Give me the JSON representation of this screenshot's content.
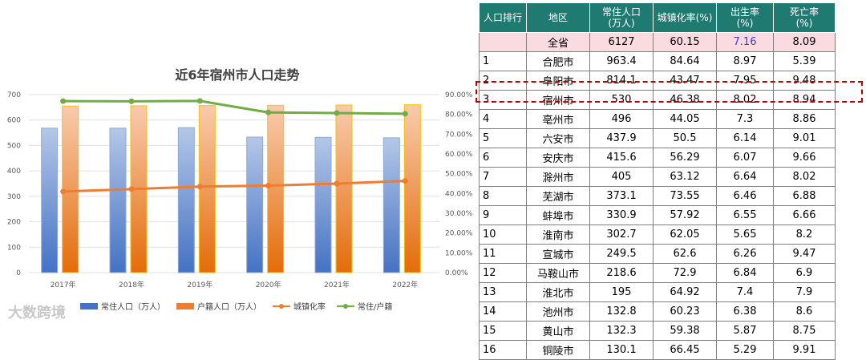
{
  "chart_data": {
    "type": "bar",
    "title": "近6年宿州市人口走势",
    "categories": [
      "2017年",
      "2018年",
      "2019年",
      "2020年",
      "2021年",
      "2022年"
    ],
    "series": [
      {
        "name": "常住人口（万人）",
        "kind": "bar",
        "axis": "left",
        "color": "#4472c4",
        "values": [
          568,
          568,
          570,
          533,
          532,
          530
        ]
      },
      {
        "name": "户籍人口（万人）",
        "kind": "bar",
        "axis": "left",
        "color": "#ed7d31",
        "values": [
          655,
          656,
          657,
          658,
          659,
          660
        ]
      },
      {
        "name": "城镇化率",
        "kind": "line",
        "axis": "right",
        "color": "#ed7d31",
        "values": [
          41.0,
          42.2,
          43.5,
          44.0,
          45.0,
          46.38
        ]
      },
      {
        "name": "常住/户籍",
        "kind": "line",
        "axis": "right",
        "color": "#70ad47",
        "values": [
          86.7,
          86.6,
          86.8,
          81.0,
          80.7,
          80.3
        ]
      }
    ],
    "ylim_left": [
      0,
      700
    ],
    "yticks_left": [
      "0",
      "100",
      "200",
      "300",
      "400",
      "500",
      "600",
      "700"
    ],
    "ylim_right": [
      0,
      90
    ],
    "yticks_right": [
      "0.00%",
      "10.00%",
      "20.00%",
      "30.00%",
      "40.00%",
      "50.00%",
      "60.00%",
      "70.00%",
      "80.00%",
      "90.00%"
    ],
    "grid": true,
    "legend_position": "bottom"
  },
  "watermark": "大数跨境",
  "table": {
    "headers": [
      "人口排行",
      "地区",
      "常住人口\n(万人)",
      "城镇化率(%)",
      "出生率\n(%)",
      "死亡率\n(%)"
    ],
    "rows": [
      [
        "",
        "全省",
        "6127",
        "60.15",
        "7.16",
        "8.09"
      ],
      [
        "1",
        "合肥市",
        "963.4",
        "84.64",
        "8.97",
        "5.39"
      ],
      [
        "2",
        "阜阳市",
        "814.1",
        "43.47",
        "7.95",
        "9.48"
      ],
      [
        "3",
        "宿州市",
        "530",
        "46.38",
        "8.02",
        "8.94"
      ],
      [
        "4",
        "亳州市",
        "496",
        "44.05",
        "7.3",
        "8.86"
      ],
      [
        "5",
        "六安市",
        "437.9",
        "50.5",
        "6.14",
        "9.01"
      ],
      [
        "6",
        "安庆市",
        "415.6",
        "56.29",
        "6.07",
        "9.66"
      ],
      [
        "7",
        "滁州市",
        "405",
        "63.12",
        "6.64",
        "8.02"
      ],
      [
        "8",
        "芜湖市",
        "373.1",
        "73.55",
        "6.46",
        "6.88"
      ],
      [
        "9",
        "蚌埠市",
        "330.9",
        "57.92",
        "6.55",
        "6.66"
      ],
      [
        "10",
        "淮南市",
        "302.7",
        "62.05",
        "5.65",
        "8.2"
      ],
      [
        "11",
        "宣城市",
        "249.5",
        "62.6",
        "6.26",
        "9.47"
      ],
      [
        "12",
        "马鞍山市",
        "218.6",
        "72.9",
        "6.84",
        "6.9"
      ],
      [
        "13",
        "淮北市",
        "195",
        "64.92",
        "7.4",
        "7.9"
      ],
      [
        "14",
        "池州市",
        "132.8",
        "60.23",
        "6.38",
        "8.6"
      ],
      [
        "15",
        "黄山市",
        "132.3",
        "59.38",
        "5.87",
        "8.75"
      ],
      [
        "16",
        "铜陵市",
        "130.1",
        "66.45",
        "5.29",
        "9.91"
      ]
    ]
  }
}
